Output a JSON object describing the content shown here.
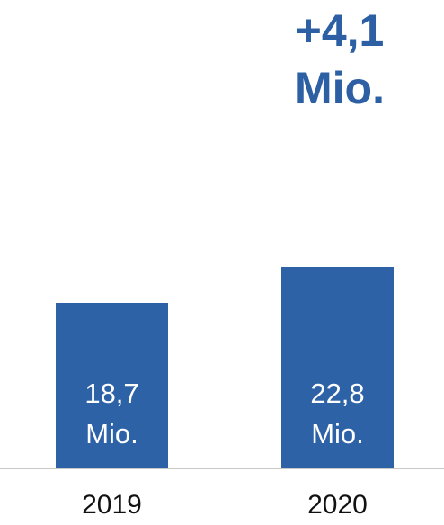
{
  "chart_data": {
    "type": "bar",
    "categories": [
      "2019",
      "2020"
    ],
    "values": [
      18.7,
      22.8
    ],
    "value_labels": [
      "18,7 Mio.",
      "22,8 Mio."
    ],
    "color": "#2d62a7",
    "annotation": "+4,1 Mio."
  }
}
